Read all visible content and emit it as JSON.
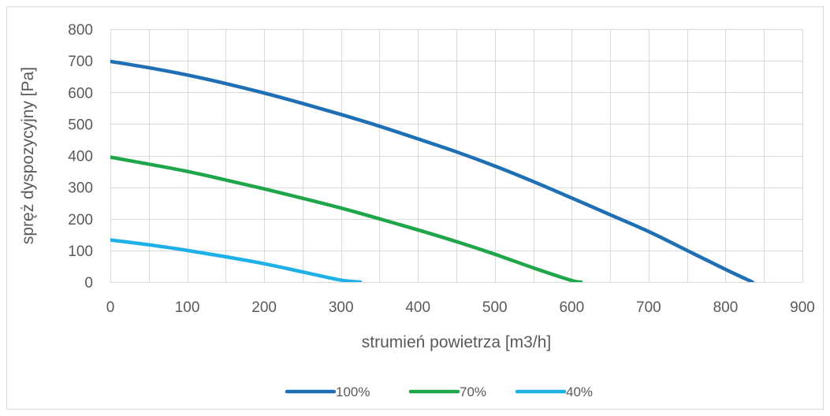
{
  "chart_data": {
    "type": "line",
    "title": "",
    "xlabel": "strumień powietrza [m3/h]",
    "ylabel": "spręż dyspozycyjny [Pa]",
    "xlim": [
      0,
      900
    ],
    "ylim": [
      0,
      800
    ],
    "x_ticks": [
      0,
      100,
      200,
      300,
      400,
      500,
      600,
      700,
      800,
      900
    ],
    "y_ticks": [
      0,
      100,
      200,
      300,
      400,
      500,
      600,
      700,
      800
    ],
    "x_minor_step": 50,
    "grid": true,
    "legend_position": "bottom",
    "series": [
      {
        "name": "100%",
        "color": "#1F6FB5",
        "x": [
          0,
          50,
          100,
          150,
          200,
          250,
          300,
          350,
          400,
          450,
          500,
          550,
          600,
          650,
          700,
          750,
          800,
          835
        ],
        "y": [
          698,
          678,
          655,
          628,
          598,
          565,
          530,
          493,
          453,
          412,
          367,
          318,
          266,
          213,
          160,
          100,
          40,
          0
        ]
      },
      {
        "name": "70%",
        "color": "#1FA64A",
        "x": [
          0,
          50,
          100,
          150,
          200,
          250,
          300,
          350,
          400,
          450,
          500,
          550,
          600,
          612
        ],
        "y": [
          395,
          373,
          350,
          323,
          295,
          265,
          234,
          200,
          165,
          128,
          88,
          45,
          5,
          0
        ]
      },
      {
        "name": "40%",
        "color": "#20B0E8",
        "x": [
          0,
          50,
          100,
          150,
          200,
          250,
          300,
          325
        ],
        "y": [
          133,
          118,
          100,
          80,
          58,
          32,
          6,
          0
        ]
      }
    ]
  }
}
